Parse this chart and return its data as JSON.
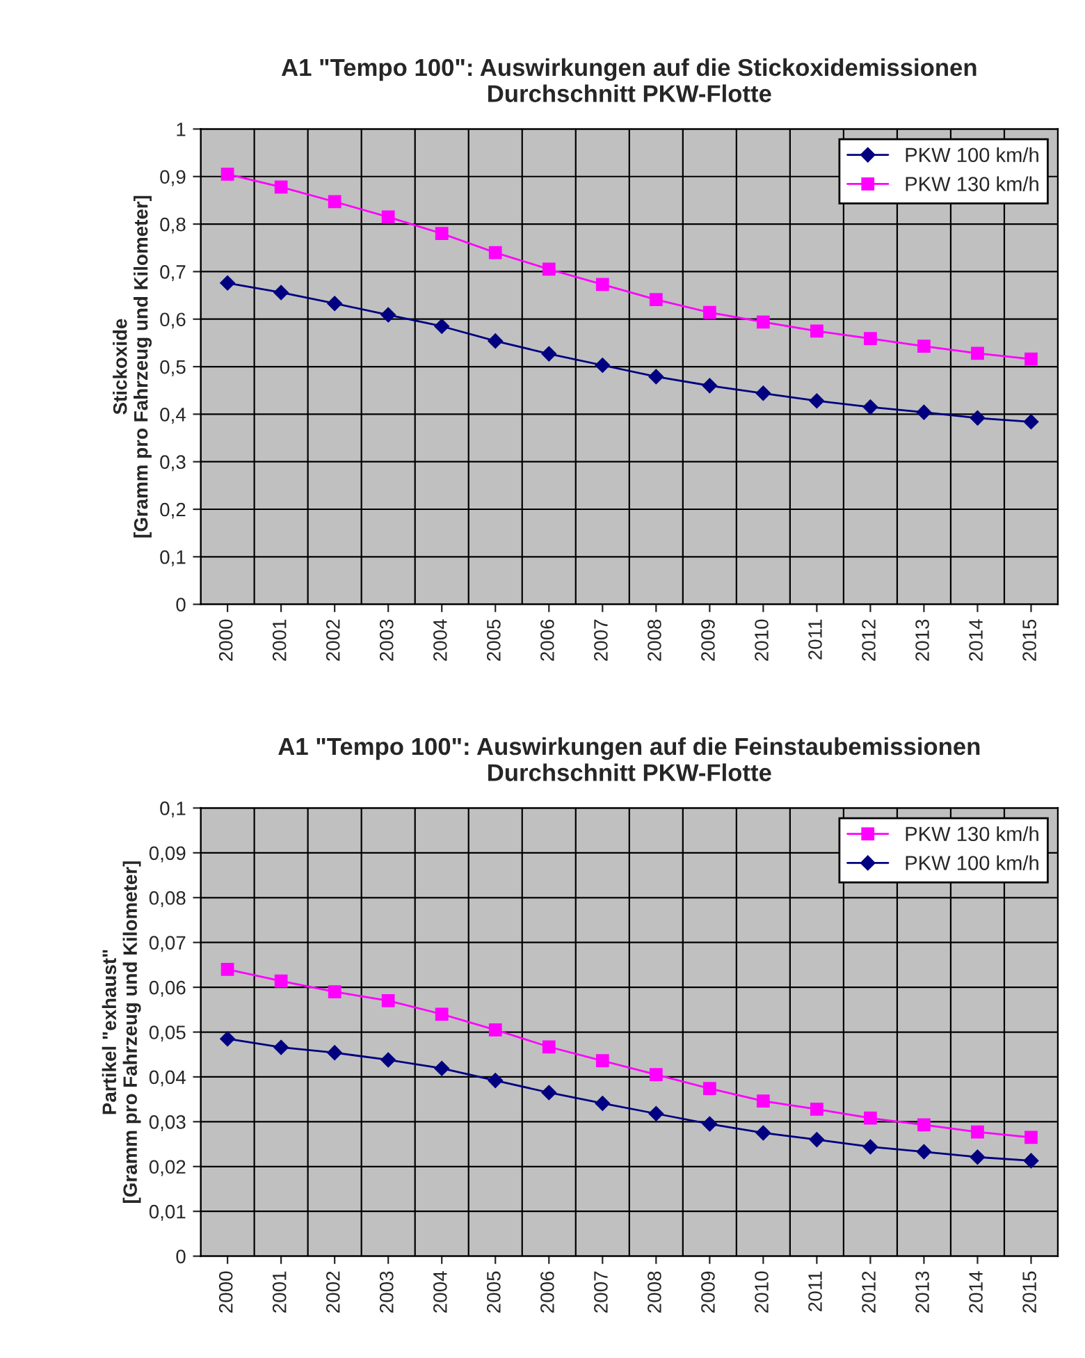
{
  "chart_data": [
    {
      "type": "line",
      "title": "A1 \"Tempo 100\": Auswirkungen auf die Stickoxidemissionen\nDurchschnitt PKW-Flotte",
      "ylabel": "Stickoxide\n[Gramm pro Fahrzeug und Kilometer]",
      "categories": [
        "2000",
        "2001",
        "2002",
        "2003",
        "2004",
        "2005",
        "2006",
        "2007",
        "2008",
        "2009",
        "2010",
        "2011",
        "2012",
        "2013",
        "2014",
        "2015"
      ],
      "series": [
        {
          "name": "PKW 100 km/h",
          "color": "#000080",
          "marker": "diamond",
          "values": [
            0.676,
            0.656,
            0.633,
            0.609,
            0.585,
            0.554,
            0.527,
            0.503,
            0.479,
            0.46,
            0.444,
            0.428,
            0.415,
            0.404,
            0.392,
            0.384
          ]
        },
        {
          "name": "PKW 130 km/h",
          "color": "#ff00ff",
          "marker": "square",
          "values": [
            0.905,
            0.878,
            0.847,
            0.815,
            0.78,
            0.74,
            0.705,
            0.673,
            0.641,
            0.614,
            0.594,
            0.575,
            0.559,
            0.543,
            0.528,
            0.516
          ]
        }
      ],
      "ylim": [
        0,
        1
      ],
      "yticks": [
        0,
        {
          "value": 0.1,
          "label": "0,1"
        },
        {
          "value": 0.2,
          "label": "0,2"
        },
        {
          "value": 0.3,
          "label": "0,3"
        },
        {
          "value": 0.4,
          "label": "0,4"
        },
        {
          "value": 0.5,
          "label": "0,5"
        },
        {
          "value": 0.6,
          "label": "0,6"
        },
        {
          "value": 0.7,
          "label": "0,7"
        },
        {
          "value": 0.8,
          "label": "0,8"
        },
        {
          "value": 0.9,
          "label": "0,9"
        },
        1
      ],
      "grid": true,
      "legend": "top right",
      "line_style": "solid"
    },
    {
      "type": "line",
      "title": "A1 \"Tempo 100\": Auswirkungen auf die Feinstaubemissionen\nDurchschnitt PKW-Flotte",
      "ylabel": "Partikel \"exhaust\"\n[Gramm pro Fahrzeug und Kilometer]",
      "categories": [
        "2000",
        "2001",
        "2002",
        "2003",
        "2004",
        "2005",
        "2006",
        "2007",
        "2008",
        "2009",
        "2010",
        "2011",
        "2012",
        "2013",
        "2014",
        "2015"
      ],
      "series": [
        {
          "name": "PKW 130 km/h",
          "color": "#ff00ff",
          "marker": "square",
          "values": [
            0.064,
            0.0614,
            0.059,
            0.057,
            0.054,
            0.0505,
            0.0467,
            0.0436,
            0.0405,
            0.0374,
            0.0346,
            0.0328,
            0.0308,
            0.0293,
            0.0277,
            0.0265
          ]
        },
        {
          "name": "PKW 100 km/h",
          "color": "#000080",
          "marker": "diamond",
          "values": [
            0.0485,
            0.0466,
            0.0454,
            0.0438,
            0.0419,
            0.0392,
            0.0365,
            0.0341,
            0.0318,
            0.0295,
            0.0275,
            0.026,
            0.0244,
            0.0233,
            0.0221,
            0.0213
          ]
        }
      ],
      "ylim": [
        0,
        0.1
      ],
      "yticks": [
        0,
        {
          "value": 0.01,
          "label": "0,01"
        },
        {
          "value": 0.02,
          "label": "0,02"
        },
        {
          "value": 0.03,
          "label": "0,03"
        },
        {
          "value": 0.04,
          "label": "0,04"
        },
        {
          "value": 0.05,
          "label": "0,05"
        },
        {
          "value": 0.06,
          "label": "0,06"
        },
        {
          "value": 0.07,
          "label": "0,07"
        },
        {
          "value": 0.08,
          "label": "0,08"
        },
        {
          "value": 0.09,
          "label": "0,09"
        },
        {
          "value": 0.1,
          "label": "0,1"
        }
      ],
      "grid": true,
      "legend": "top right",
      "line_style": "solid"
    }
  ]
}
